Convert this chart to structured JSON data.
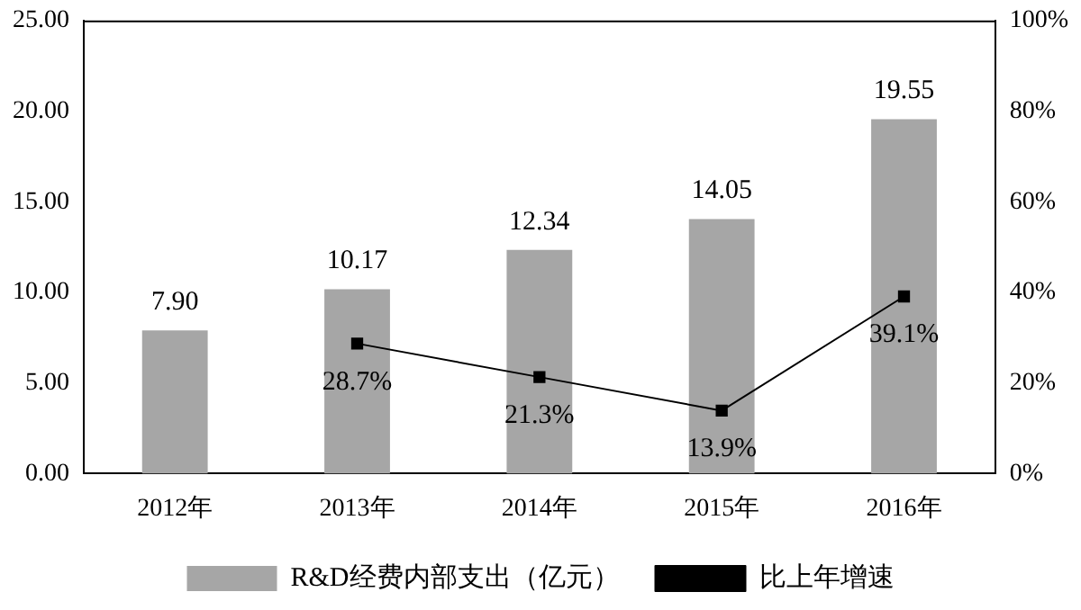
{
  "chart_data": {
    "type": "bar",
    "categories": [
      "2012年",
      "2013年",
      "2014年",
      "2015年",
      "2016年"
    ],
    "series": [
      {
        "name": "R&D经费内部支出（亿元）",
        "color": "#a6a6a6",
        "values": [
          7.9,
          10.17,
          12.34,
          14.05,
          19.55
        ],
        "value_labels": [
          "7.90",
          "10.17",
          "12.34",
          "14.05",
          "19.55"
        ]
      },
      {
        "name": "比上年增速",
        "type": "line",
        "axis": "y2",
        "color": "#000000",
        "values": [
          null,
          28.7,
          21.3,
          13.9,
          39.1
        ],
        "value_labels": [
          null,
          "28.7%",
          "21.3%",
          "13.9%",
          "39.1%"
        ]
      }
    ],
    "ylim": [
      0,
      25
    ],
    "yticks": [
      {
        "value": 0,
        "label": "0.00"
      },
      {
        "value": 5,
        "label": "5.00"
      },
      {
        "value": 10,
        "label": "10.00"
      },
      {
        "value": 15,
        "label": "15.00"
      },
      {
        "value": 20,
        "label": "20.00"
      },
      {
        "value": 25,
        "label": "25.00"
      }
    ],
    "y2lim": [
      0,
      100
    ],
    "y2ticks": [
      {
        "value": 0,
        "label": "0%"
      },
      {
        "value": 20,
        "label": "20%"
      },
      {
        "value": 40,
        "label": "40%"
      },
      {
        "value": 60,
        "label": "60%"
      },
      {
        "value": 80,
        "label": "80%"
      },
      {
        "value": 100,
        "label": "100%"
      }
    ],
    "grid": false,
    "legend": "bottom",
    "marker": "square",
    "line_style": "solid"
  }
}
